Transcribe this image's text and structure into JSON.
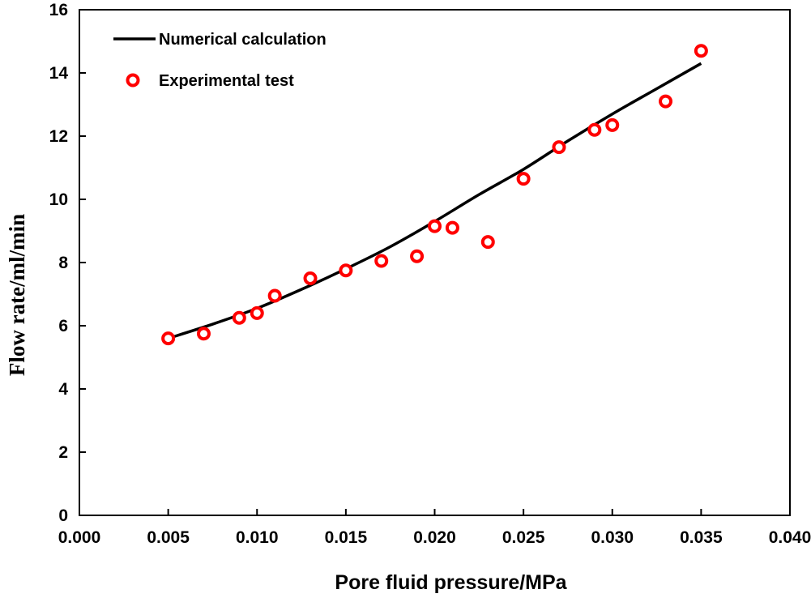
{
  "chart_data": {
    "type": "scatter",
    "title": "",
    "xlabel": "Pore fluid pressure/MPa",
    "ylabel": "Flow rate/ml/min",
    "xlim": [
      0.0,
      0.04
    ],
    "ylim": [
      0,
      16
    ],
    "x_ticks": [
      "0.000",
      "0.005",
      "0.010",
      "0.015",
      "0.020",
      "0.025",
      "0.030",
      "0.035",
      "0.040"
    ],
    "y_ticks": [
      "0",
      "2",
      "4",
      "6",
      "8",
      "10",
      "12",
      "14",
      "16"
    ],
    "grid": false,
    "legend_position": "top-left",
    "series": [
      {
        "name": "Numerical calculation",
        "type": "line",
        "color": "#000000",
        "x": [
          0.005,
          0.0075,
          0.01,
          0.0125,
          0.015,
          0.0175,
          0.02,
          0.0225,
          0.025,
          0.0275,
          0.03,
          0.0325,
          0.035
        ],
        "y": [
          5.6,
          6.05,
          6.55,
          7.15,
          7.8,
          8.5,
          9.3,
          10.15,
          10.95,
          11.85,
          12.7,
          13.5,
          14.3
        ]
      },
      {
        "name": "Experimental test",
        "type": "scatter",
        "marker": "open-circle",
        "color": "#ff0000",
        "x": [
          0.005,
          0.007,
          0.009,
          0.01,
          0.011,
          0.013,
          0.015,
          0.017,
          0.019,
          0.02,
          0.021,
          0.023,
          0.025,
          0.027,
          0.029,
          0.03,
          0.033,
          0.035
        ],
        "y": [
          5.6,
          5.75,
          6.25,
          6.4,
          6.95,
          7.5,
          7.75,
          8.05,
          8.2,
          9.15,
          9.1,
          8.65,
          10.65,
          11.65,
          12.2,
          12.35,
          13.1,
          14.7
        ]
      }
    ]
  }
}
